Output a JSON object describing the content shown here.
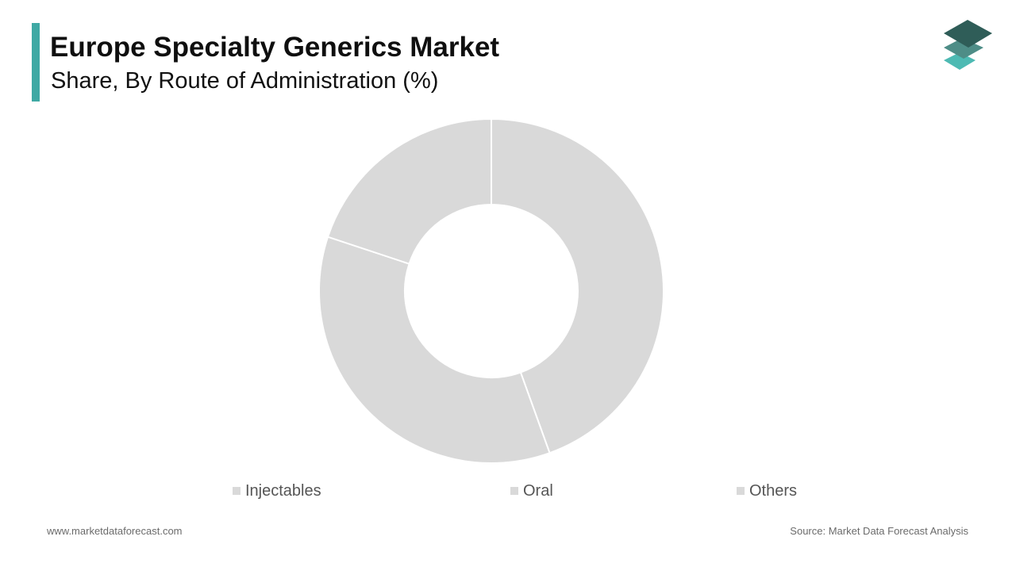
{
  "header": {
    "title": "Europe Specialty Generics Market",
    "subtitle": "Share, By Route of Administration (%)"
  },
  "colors": {
    "accent": "#3fa9a4",
    "slice_fill": "#d9d9d9",
    "slice_stroke": "#ffffff",
    "logo_top": "#2f5d58",
    "logo_middle": "#4e8d87",
    "logo_bottom": "#4dbab3"
  },
  "logo": {
    "icon": "stacked-layers-icon"
  },
  "chart_data": {
    "type": "pie",
    "donut": true,
    "categories": [
      "Injectables",
      "Oral",
      "Others"
    ],
    "values": [
      44.5,
      35.6,
      19.9
    ],
    "slice_colors": [
      "#d9d9d9",
      "#d9d9d9",
      "#d9d9d9"
    ],
    "legend": "bottom",
    "start_angle": "top, clockwise"
  },
  "legend": {
    "items": [
      {
        "label": "Injectables",
        "color": "#d9d9d9"
      },
      {
        "label": "Oral",
        "color": "#d9d9d9"
      },
      {
        "label": "Others",
        "color": "#d9d9d9"
      }
    ]
  },
  "footer": {
    "website": "www.marketdataforecast.com",
    "source": "Source: Market Data Forecast Analysis"
  }
}
